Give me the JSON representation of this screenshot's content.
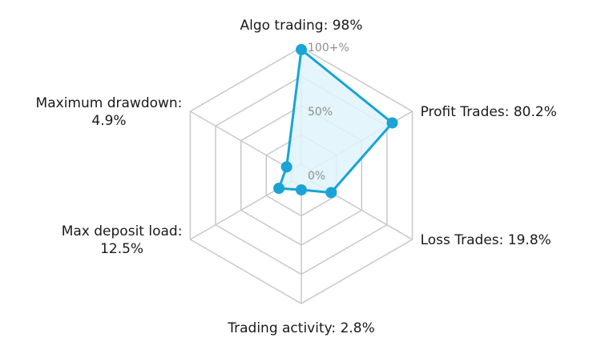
{
  "chart_data": {
    "type": "radar",
    "tick_labels": [
      "0%",
      "50%",
      "100+%"
    ],
    "rlim": [
      0,
      100
    ],
    "grid": true,
    "colors": {
      "line": "#1aa3d6",
      "marker": "#1aa3d6",
      "fill": "#dff3fb",
      "grid": "#c8c8c8",
      "label": "#1a1a1a",
      "tick": "#8e8e8e"
    },
    "axes": [
      {
        "label": [
          "Algo trading: 98%"
        ],
        "value": 98
      },
      {
        "label": [
          "Profit Trades: 80.2%"
        ],
        "value": 80.2
      },
      {
        "label": [
          "Loss Trades: 19.8%"
        ],
        "value": 19.8
      },
      {
        "label": [
          "Trading activity: 2.8%"
        ],
        "value": 2.8
      },
      {
        "label": [
          "Max deposit load:",
          "12.5%"
        ],
        "value": 12.5
      },
      {
        "label": [
          "Maximum drawdown:",
          "4.9%"
        ],
        "value": 4.9
      }
    ]
  }
}
